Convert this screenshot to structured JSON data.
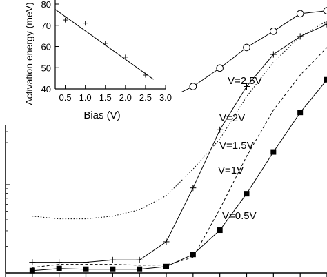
{
  "chart_data": [
    {
      "type": "line",
      "title": "",
      "xlabel": "",
      "ylabel": "",
      "x": [
        1,
        2,
        3,
        4,
        5,
        6,
        7,
        8,
        9,
        10,
        11,
        12
      ],
      "xlim": [
        0,
        12
      ],
      "yscale": "log",
      "ylim": [
        1,
        1200
      ],
      "grid": false,
      "series": [
        {
          "name": "V=2.5V",
          "marker": "open-circle",
          "line": "solid",
          "values": [
            60,
            65,
            68,
            73,
            79,
            93,
            130,
            210,
            360,
            550,
            870,
            940
          ]
        },
        {
          "name": "V=2V",
          "marker": "none",
          "line": "dotted",
          "values": [
            4.4,
            4.1,
            4.1,
            4.4,
            5.2,
            7.5,
            15,
            33,
            100,
            245,
            480,
            720
          ]
        },
        {
          "name": "V=1.5V",
          "marker": "plus",
          "line": "solid",
          "values": [
            1.32,
            1.32,
            1.32,
            1.4,
            1.4,
            2.25,
            9.2,
            42,
            130,
            300,
            480,
            660
          ]
        },
        {
          "name": "V=1V",
          "marker": "none",
          "line": "dashed",
          "values": [
            1.15,
            1.25,
            1.25,
            1.25,
            1.22,
            1.23,
            1.5,
            5.3,
            21,
            70,
            175,
            360
          ]
        },
        {
          "name": "V=0.5V",
          "marker": "filled-square",
          "line": "solid",
          "values": [
            1.06,
            1.12,
            1.1,
            1.1,
            1.1,
            1.18,
            1.62,
            3.05,
            7.9,
            23.5,
            66,
            155
          ]
        }
      ],
      "annotations": [
        "V=2.5V",
        "V=2V",
        "V=1.5V",
        "V=1V",
        "V=0.5V"
      ]
    },
    {
      "type": "scatter",
      "title": "",
      "xlabel": "Bias (V)",
      "ylabel": "Activation energy (meV)",
      "xlim": [
        0.25,
        3.0
      ],
      "ylim": [
        40,
        80
      ],
      "xticks": [
        "0.5",
        "1.0",
        "1.5",
        "2.0",
        "2.5",
        "3.0"
      ],
      "yticks": [
        "40",
        "50",
        "60",
        "70",
        "80"
      ],
      "points": [
        {
          "x": 0.5,
          "y": 72.5
        },
        {
          "x": 1.0,
          "y": 71
        },
        {
          "x": 1.5,
          "y": 61.5
        },
        {
          "x": 2.0,
          "y": 55
        },
        {
          "x": 2.5,
          "y": 46.5
        }
      ],
      "fit_line": {
        "x": [
          0.25,
          2.7
        ],
        "y": [
          77.5,
          44.5
        ]
      }
    }
  ]
}
